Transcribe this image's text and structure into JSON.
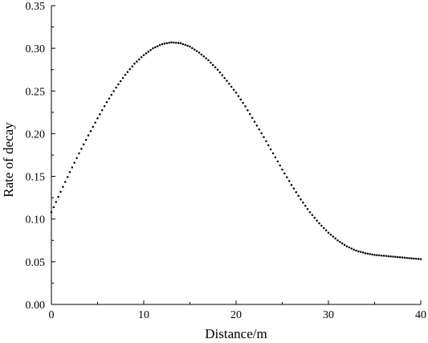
{
  "chart_data": {
    "type": "scatter",
    "title": "",
    "xlabel": "Distance/m",
    "ylabel": "Rate of decay",
    "xlim": [
      0,
      40
    ],
    "ylim": [
      0.0,
      0.35
    ],
    "x_ticks": [
      "0",
      "10",
      "20",
      "30",
      "40"
    ],
    "y_ticks": [
      "0.00",
      "0.05",
      "0.10",
      "0.15",
      "0.20",
      "0.25",
      "0.30",
      "0.35"
    ],
    "grid": false,
    "legend": "none",
    "marker_color": "#000000",
    "series": [
      {
        "x": [
          0,
          1,
          2,
          3,
          4,
          5,
          6,
          7,
          8,
          9,
          10,
          11,
          12,
          13,
          14,
          15,
          16,
          17,
          18,
          19,
          20,
          21,
          22,
          23,
          24,
          25,
          26,
          27,
          28,
          29,
          30,
          31,
          32,
          33,
          34,
          35,
          36,
          37,
          38,
          39,
          40
        ],
        "values": [
          0.108,
          0.132,
          0.155,
          0.177,
          0.198,
          0.218,
          0.237,
          0.254,
          0.269,
          0.282,
          0.292,
          0.3,
          0.305,
          0.307,
          0.306,
          0.302,
          0.295,
          0.286,
          0.275,
          0.262,
          0.248,
          0.232,
          0.214,
          0.196,
          0.177,
          0.158,
          0.14,
          0.123,
          0.108,
          0.095,
          0.084,
          0.075,
          0.068,
          0.063,
          0.06,
          0.058,
          0.057,
          0.056,
          0.055,
          0.054,
          0.053
        ]
      }
    ]
  }
}
